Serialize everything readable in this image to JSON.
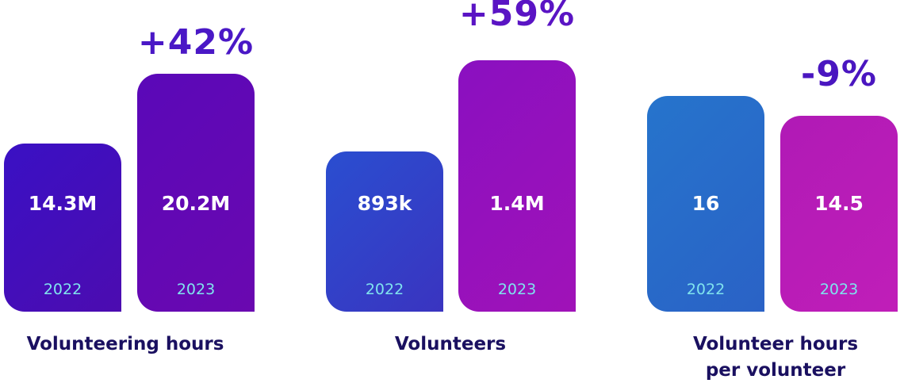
{
  "chart_data": [
    {
      "type": "bar",
      "title": "",
      "label": "Volunteering hours",
      "change": "+42%",
      "change_color": "#4a18c6",
      "categories": [
        "2022",
        "2023"
      ],
      "values": [
        14.3,
        20.2
      ],
      "value_labels": [
        "14.3M",
        "20.2M"
      ],
      "unit": "M",
      "ylim": [
        0,
        22.9
      ],
      "colors": [
        [
          "#3a10c4",
          "#4c0cb0"
        ],
        [
          "#5a08b8",
          "#6a08b0"
        ]
      ]
    },
    {
      "type": "bar",
      "title": "",
      "label": "Volunteers",
      "change": "+59%",
      "change_color": "#5a14c4",
      "categories": [
        "2022",
        "2023"
      ],
      "values": [
        893,
        1400
      ],
      "value_labels": [
        "893k",
        "1.4M"
      ],
      "unit": "k",
      "ylim": [
        0,
        1503
      ],
      "colors": [
        [
          "#2a4ed0",
          "#3a34c0"
        ],
        [
          "#8a10c0",
          "#a012b8"
        ]
      ]
    },
    {
      "type": "bar",
      "title": "",
      "label": "Volunteer hours per volunteer",
      "change": "-9%",
      "change_color": "#4a16c0",
      "categories": [
        "2022",
        "2023"
      ],
      "values": [
        16,
        14.5
      ],
      "value_labels": [
        "16",
        "14.5"
      ],
      "unit": "",
      "ylim": [
        0,
        20
      ],
      "colors": [
        [
          "#2674cc",
          "#2a62c6"
        ],
        [
          "#b01ab6",
          "#c01eb8"
        ]
      ]
    }
  ]
}
